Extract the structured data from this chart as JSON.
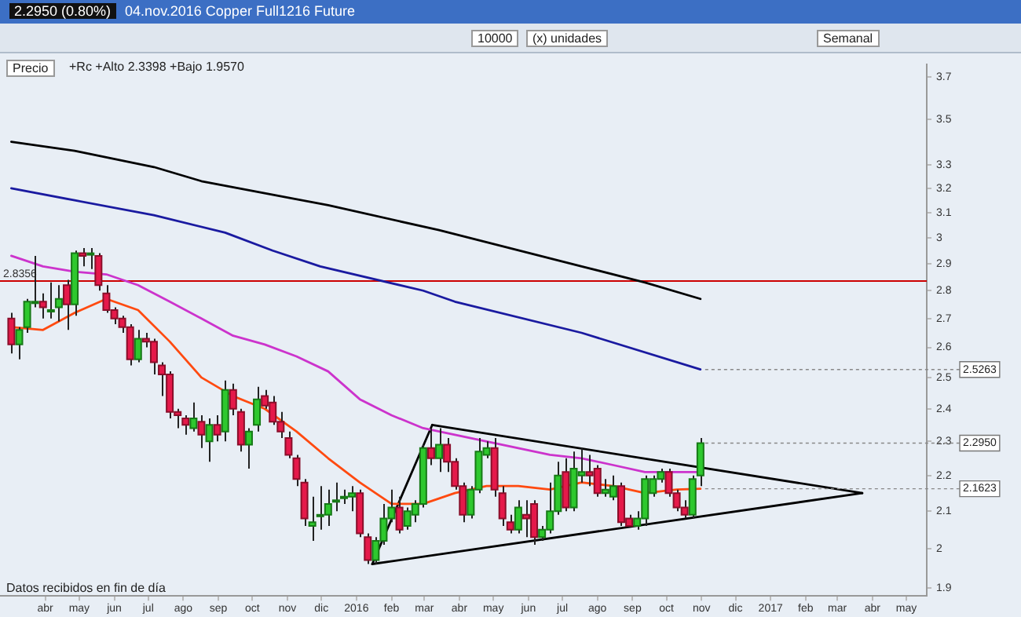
{
  "chart_data": {
    "type": "candlestick",
    "title": "04.nov.2016 Copper Full1216 Future",
    "subtitle": "2.2950 (0.80%)",
    "x": [
      "2015-03-02",
      "2015-03-09",
      "2015-03-16",
      "2015-03-23",
      "2015-03-30",
      "2015-04-06",
      "2015-04-13",
      "2015-04-20",
      "2015-04-27",
      "2015-05-04",
      "2015-05-11",
      "2015-05-18",
      "2015-05-25",
      "2015-06-01",
      "2015-06-08",
      "2015-06-15",
      "2015-06-22",
      "2015-06-29",
      "2015-07-06",
      "2015-07-13",
      "2015-07-20",
      "2015-07-27",
      "2015-08-03",
      "2015-08-10",
      "2015-08-17",
      "2015-08-24",
      "2015-08-31",
      "2015-09-07",
      "2015-09-14",
      "2015-09-21",
      "2015-09-28",
      "2015-10-05",
      "2015-10-12",
      "2015-10-19",
      "2015-10-26",
      "2015-11-02",
      "2015-11-09",
      "2015-11-16",
      "2015-11-23",
      "2015-11-30",
      "2015-12-07",
      "2015-12-14",
      "2015-12-21",
      "2015-12-28",
      "2016-01-04",
      "2016-01-11",
      "2016-01-18",
      "2016-01-25",
      "2016-02-01",
      "2016-02-08",
      "2016-02-15",
      "2016-02-22",
      "2016-02-29",
      "2016-03-07",
      "2016-03-14",
      "2016-03-21",
      "2016-03-28",
      "2016-04-04",
      "2016-04-11",
      "2016-04-18",
      "2016-04-25",
      "2016-05-02",
      "2016-05-09",
      "2016-05-16",
      "2016-05-23",
      "2016-05-30",
      "2016-06-06",
      "2016-06-13",
      "2016-06-20",
      "2016-06-27",
      "2016-07-04",
      "2016-07-11",
      "2016-07-18",
      "2016-07-25",
      "2016-08-01",
      "2016-08-08",
      "2016-08-15",
      "2016-08-22",
      "2016-08-29",
      "2016-09-05",
      "2016-09-12",
      "2016-09-19",
      "2016-09-26",
      "2016-10-03",
      "2016-10-10",
      "2016-10-17",
      "2016-10-24",
      "2016-10-31"
    ],
    "ohlc": [
      [
        2.7,
        2.72,
        2.58,
        2.61
      ],
      [
        2.61,
        2.67,
        2.56,
        2.66
      ],
      [
        2.67,
        2.77,
        2.65,
        2.76
      ],
      [
        2.76,
        2.93,
        2.74,
        2.76
      ],
      [
        2.76,
        2.79,
        2.7,
        2.74
      ],
      [
        2.73,
        2.83,
        2.7,
        2.73
      ],
      [
        2.74,
        2.82,
        2.69,
        2.77
      ],
      [
        2.82,
        2.84,
        2.66,
        2.75
      ],
      [
        2.75,
        2.95,
        2.71,
        2.94
      ],
      [
        2.94,
        2.96,
        2.89,
        2.93
      ],
      [
        2.94,
        2.96,
        2.88,
        2.94
      ],
      [
        2.93,
        2.94,
        2.8,
        2.82
      ],
      [
        2.79,
        2.82,
        2.72,
        2.73
      ],
      [
        2.73,
        2.74,
        2.68,
        2.7
      ],
      [
        2.7,
        2.71,
        2.65,
        2.67
      ],
      [
        2.67,
        2.68,
        2.54,
        2.56
      ],
      [
        2.56,
        2.66,
        2.55,
        2.63
      ],
      [
        2.63,
        2.65,
        2.6,
        2.62
      ],
      [
        2.62,
        2.63,
        2.51,
        2.55
      ],
      [
        2.54,
        2.55,
        2.44,
        2.51
      ],
      [
        2.51,
        2.52,
        2.37,
        2.39
      ],
      [
        2.39,
        2.4,
        2.34,
        2.38
      ],
      [
        2.37,
        2.38,
        2.32,
        2.35
      ],
      [
        2.34,
        2.42,
        2.33,
        2.37
      ],
      [
        2.36,
        2.38,
        2.28,
        2.32
      ],
      [
        2.3,
        2.37,
        2.24,
        2.35
      ],
      [
        2.35,
        2.38,
        2.3,
        2.32
      ],
      [
        2.33,
        2.49,
        2.3,
        2.46
      ],
      [
        2.46,
        2.48,
        2.38,
        2.4
      ],
      [
        2.39,
        2.4,
        2.27,
        2.29
      ],
      [
        2.29,
        2.34,
        2.22,
        2.33
      ],
      [
        2.35,
        2.47,
        2.33,
        2.43
      ],
      [
        2.44,
        2.46,
        2.4,
        2.41
      ],
      [
        2.42,
        2.44,
        2.35,
        2.36
      ],
      [
        2.36,
        2.39,
        2.31,
        2.33
      ],
      [
        2.31,
        2.33,
        2.25,
        2.26
      ],
      [
        2.25,
        2.26,
        2.17,
        2.19
      ],
      [
        2.18,
        2.19,
        2.06,
        2.08
      ],
      [
        2.06,
        2.14,
        2.02,
        2.07
      ],
      [
        2.09,
        2.17,
        2.05,
        2.09
      ],
      [
        2.09,
        2.16,
        2.06,
        2.12
      ],
      [
        2.13,
        2.18,
        2.1,
        2.13
      ],
      [
        2.14,
        2.16,
        2.12,
        2.14
      ],
      [
        2.14,
        2.17,
        2.1,
        2.15
      ],
      [
        2.15,
        2.16,
        2.03,
        2.04
      ],
      [
        2.03,
        2.04,
        1.96,
        1.97
      ],
      [
        1.97,
        2.03,
        1.96,
        2.02
      ],
      [
        2.02,
        2.12,
        2.01,
        2.08
      ],
      [
        2.08,
        2.16,
        2.07,
        2.11
      ],
      [
        2.11,
        2.14,
        2.04,
        2.05
      ],
      [
        2.06,
        2.11,
        2.05,
        2.1
      ],
      [
        2.09,
        2.13,
        2.07,
        2.12
      ],
      [
        2.12,
        2.29,
        2.11,
        2.28
      ],
      [
        2.28,
        2.34,
        2.23,
        2.25
      ],
      [
        2.25,
        2.34,
        2.21,
        2.29
      ],
      [
        2.29,
        2.31,
        2.21,
        2.24
      ],
      [
        2.24,
        2.25,
        2.16,
        2.17
      ],
      [
        2.17,
        2.18,
        2.07,
        2.09
      ],
      [
        2.09,
        2.17,
        2.08,
        2.16
      ],
      [
        2.16,
        2.31,
        2.15,
        2.27
      ],
      [
        2.26,
        2.3,
        2.25,
        2.28
      ],
      [
        2.28,
        2.31,
        2.14,
        2.16
      ],
      [
        2.15,
        2.17,
        2.06,
        2.08
      ],
      [
        2.07,
        2.09,
        2.04,
        2.05
      ],
      [
        2.05,
        2.13,
        2.04,
        2.11
      ],
      [
        2.09,
        2.13,
        2.03,
        2.08
      ],
      [
        2.12,
        2.13,
        2.01,
        2.03
      ],
      [
        2.03,
        2.06,
        2.02,
        2.05
      ],
      [
        2.05,
        2.18,
        2.04,
        2.1
      ],
      [
        2.1,
        2.24,
        2.09,
        2.2
      ],
      [
        2.21,
        2.25,
        2.1,
        2.11
      ],
      [
        2.11,
        2.27,
        2.1,
        2.22
      ],
      [
        2.2,
        2.28,
        2.18,
        2.21
      ],
      [
        2.21,
        2.26,
        2.17,
        2.2
      ],
      [
        2.22,
        2.23,
        2.14,
        2.15
      ],
      [
        2.15,
        2.19,
        2.14,
        2.16
      ],
      [
        2.14,
        2.2,
        2.13,
        2.17
      ],
      [
        2.17,
        2.18,
        2.06,
        2.07
      ],
      [
        2.08,
        2.09,
        2.06,
        2.06
      ],
      [
        2.06,
        2.1,
        2.05,
        2.08
      ],
      [
        2.08,
        2.2,
        2.06,
        2.19
      ],
      [
        2.15,
        2.2,
        2.14,
        2.19
      ],
      [
        2.19,
        2.22,
        2.18,
        2.21
      ],
      [
        2.21,
        2.22,
        2.14,
        2.15
      ],
      [
        2.15,
        2.16,
        2.1,
        2.11
      ],
      [
        2.11,
        2.13,
        2.08,
        2.09
      ],
      [
        2.09,
        2.2,
        2.08,
        2.19
      ],
      [
        2.2,
        2.31,
        2.17,
        2.295
      ]
    ],
    "series": [
      {
        "type": "line",
        "color": "#000000",
        "x": [
          "2015-03-02",
          "2015-04-27",
          "2015-07-06",
          "2015-08-17",
          "2015-12-07",
          "2016-03-14",
          "2016-07-18",
          "2016-09-12",
          "2016-10-31"
        ],
        "values": [
          3.4,
          3.36,
          3.29,
          3.23,
          3.13,
          3.03,
          2.89,
          2.83,
          2.77
        ]
      },
      {
        "type": "line",
        "color": "#1a1aa0",
        "x": [
          "2015-03-02",
          "2015-04-27",
          "2015-07-06",
          "2015-09-07",
          "2015-10-19",
          "2015-11-30",
          "2016-02-29",
          "2016-03-28",
          "2016-07-18",
          "2016-10-31"
        ],
        "values": [
          3.2,
          3.15,
          3.09,
          3.02,
          2.95,
          2.89,
          2.8,
          2.76,
          2.65,
          2.5263
        ]
      },
      {
        "type": "line",
        "color": "#cc33cc",
        "x": [
          "2015-03-02",
          "2015-03-30",
          "2015-04-27",
          "2015-05-25",
          "2015-06-22",
          "2015-07-20",
          "2015-08-17",
          "2015-09-14",
          "2015-10-12",
          "2015-11-09",
          "2015-12-07",
          "2016-01-04",
          "2016-02-01",
          "2016-02-29",
          "2016-03-28",
          "2016-04-25",
          "2016-05-23",
          "2016-06-20",
          "2016-07-18",
          "2016-08-15",
          "2016-09-12",
          "2016-10-10",
          "2016-10-31"
        ],
        "values": [
          2.93,
          2.89,
          2.87,
          2.86,
          2.82,
          2.76,
          2.7,
          2.64,
          2.61,
          2.57,
          2.52,
          2.43,
          2.38,
          2.34,
          2.32,
          2.3,
          2.28,
          2.26,
          2.25,
          2.23,
          2.21,
          2.21,
          2.21
        ]
      },
      {
        "type": "line",
        "color": "#ff4a10",
        "x": [
          "2015-03-02",
          "2015-03-30",
          "2015-04-27",
          "2015-05-25",
          "2015-06-22",
          "2015-07-20",
          "2015-08-17",
          "2015-09-14",
          "2015-10-12",
          "2015-11-09",
          "2015-12-07",
          "2016-01-04",
          "2016-02-01",
          "2016-02-29",
          "2016-03-28",
          "2016-04-25",
          "2016-05-23",
          "2016-06-20",
          "2016-07-18",
          "2016-08-15",
          "2016-09-12",
          "2016-10-10",
          "2016-10-31"
        ],
        "values": [
          2.67,
          2.66,
          2.72,
          2.77,
          2.73,
          2.62,
          2.5,
          2.44,
          2.4,
          2.33,
          2.25,
          2.18,
          2.12,
          2.12,
          2.15,
          2.17,
          2.17,
          2.16,
          2.18,
          2.17,
          2.15,
          2.16,
          2.1623
        ]
      },
      {
        "type": "line",
        "color": "#000000",
        "x": [
          "2016-01-15",
          "2016-03-08"
        ],
        "values": [
          1.96,
          2.35
        ]
      },
      {
        "type": "line",
        "color": "#000000",
        "x": [
          "2016-03-08",
          "2017-03-23"
        ],
        "values": [
          2.35,
          2.15
        ]
      },
      {
        "type": "line",
        "color": "#000000",
        "x": [
          "2016-01-15",
          "2017-03-23"
        ],
        "values": [
          1.96,
          2.15
        ]
      }
    ],
    "xlim": [
      "2015-02-20",
      "2017-05-19"
    ],
    "xticks": [
      {
        "value": "2015-04-01",
        "label": "abr"
      },
      {
        "value": "2015-05-01",
        "label": "may"
      },
      {
        "value": "2015-06-01",
        "label": "jun"
      },
      {
        "value": "2015-07-01",
        "label": "jul"
      },
      {
        "value": "2015-08-01",
        "label": "ago"
      },
      {
        "value": "2015-09-01",
        "label": "sep"
      },
      {
        "value": "2015-10-01",
        "label": "oct"
      },
      {
        "value": "2015-11-01",
        "label": "nov"
      },
      {
        "value": "2015-12-01",
        "label": "dic"
      },
      {
        "value": "2016-01-01",
        "label": "2016"
      },
      {
        "value": "2016-02-01",
        "label": "feb"
      },
      {
        "value": "2016-03-01",
        "label": "mar"
      },
      {
        "value": "2016-04-01",
        "label": "abr"
      },
      {
        "value": "2016-05-01",
        "label": "may"
      },
      {
        "value": "2016-06-01",
        "label": "jun"
      },
      {
        "value": "2016-07-01",
        "label": "jul"
      },
      {
        "value": "2016-08-01",
        "label": "ago"
      },
      {
        "value": "2016-09-01",
        "label": "sep"
      },
      {
        "value": "2016-10-01",
        "label": "oct"
      },
      {
        "value": "2016-11-01",
        "label": "nov"
      },
      {
        "value": "2016-12-01",
        "label": "dic"
      },
      {
        "value": "2017-01-01",
        "label": "2017"
      },
      {
        "value": "2017-02-01",
        "label": "feb"
      },
      {
        "value": "2017-03-01",
        "label": "mar"
      },
      {
        "value": "2017-04-01",
        "label": "abr"
      },
      {
        "value": "2017-05-01",
        "label": "may"
      }
    ],
    "ylim": [
      1.88,
      3.76
    ],
    "yticks": [
      1.9,
      2,
      2.1,
      2.2,
      2.3,
      2.4,
      2.5,
      2.6,
      2.7,
      2.8,
      2.9,
      3,
      3.1,
      3.2,
      3.3,
      3.5,
      3.7
    ],
    "log": "y",
    "grid": false,
    "ref_lines": [
      {
        "axis": "y",
        "value": 2.8356,
        "label": "2.8356",
        "color": "#cc0000"
      }
    ],
    "annotations": [
      "Precio",
      "+Rc +Alto 2.3398 +Bajo 1.9570",
      "Datos recibidos en fin de día",
      "10000",
      "(x) unidades",
      "Semanal",
      {
        "text": "2.5263",
        "x": "2016-10-31",
        "y": 2.5263
      },
      {
        "text": "2.2950",
        "x": "2016-10-31",
        "y": 2.295
      },
      {
        "text": "2.1623",
        "x": "2016-10-31",
        "y": 2.1623
      }
    ]
  }
}
